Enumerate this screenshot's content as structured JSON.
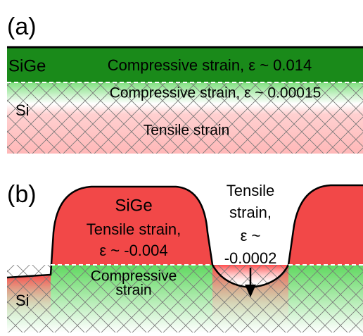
{
  "panel_a": {
    "label": "(a)",
    "layer_top": {
      "material": "SiGe",
      "strain": "Compressive strain, ε ~ 0.014"
    },
    "layer_bottom": {
      "material": "Si",
      "strain_top": "Compressive strain, ε ~ 0.00015",
      "strain_bottom": "Tensile strain"
    }
  },
  "panel_b": {
    "label": "(b)",
    "island": {
      "material": "SiGe",
      "strain_line1": "Tensile strain,",
      "strain_line2": "ε ~ -0.004"
    },
    "substrate": {
      "material": "Si",
      "strain_line1": "Compressive",
      "strain_line2": "strain"
    },
    "gap": {
      "line1": "Tensile",
      "line2": "strain,",
      "line3": "ε ~",
      "line4": "-0.0002"
    }
  }
}
